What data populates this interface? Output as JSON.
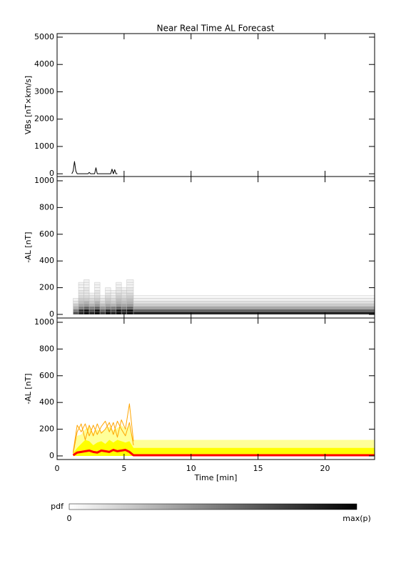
{
  "chart_data": [
    {
      "type": "line",
      "title": "Near Real Time AL Forecast",
      "ylabel": "VBs [nT×km/s]",
      "xlim": [
        0,
        23.7
      ],
      "xticks": [
        0,
        5,
        10,
        15,
        20
      ],
      "ylim": [
        -100,
        5130
      ],
      "yticks": [
        0,
        1000,
        2000,
        3000,
        4000,
        5000
      ],
      "x": [
        1.1,
        1.2,
        1.3,
        1.4,
        1.5,
        2.3,
        2.4,
        2.5,
        2.8,
        2.9,
        3.0,
        4.0,
        4.1,
        4.2,
        4.3,
        4.4,
        4.5
      ],
      "series": [
        {
          "color": "#000000",
          "values": [
            0,
            100,
            450,
            100,
            0,
            0,
            50,
            0,
            0,
            220,
            0,
            0,
            170,
            0,
            150,
            0,
            0
          ]
        }
      ]
    },
    {
      "type": "heatmap",
      "ylabel": "-AL [nT]",
      "xlim": [
        0,
        23.7
      ],
      "xticks": [
        0,
        5,
        10,
        15,
        20
      ],
      "ylim": [
        -27,
        1032
      ],
      "yticks": [
        0,
        200,
        400,
        600,
        800,
        1000
      ],
      "x_edges": [
        1.2,
        1.6,
        2.0,
        2.4,
        2.8,
        3.2,
        3.6,
        4.0,
        4.4,
        4.8,
        5.2,
        5.7,
        23.7
      ],
      "y_edges": [
        0,
        20,
        40,
        60,
        80,
        100,
        120,
        140,
        160,
        180,
        200,
        220,
        240,
        260
      ],
      "z": [
        [
          0.7,
          0.9,
          1,
          0.9,
          1,
          0.8,
          1,
          0.9,
          1,
          0.9,
          1,
          0.9
        ],
        [
          0.5,
          0.8,
          0.9,
          0.7,
          0.9,
          0.6,
          0.8,
          0.7,
          0.9,
          0.8,
          0.9,
          0.6
        ],
        [
          0.3,
          0.5,
          0.6,
          0.5,
          0.6,
          0.4,
          0.5,
          0.5,
          0.6,
          0.5,
          0.6,
          0.35
        ],
        [
          0.2,
          0.35,
          0.4,
          0.3,
          0.4,
          0.25,
          0.35,
          0.3,
          0.4,
          0.35,
          0.4,
          0.2
        ],
        [
          0.1,
          0.25,
          0.3,
          0.2,
          0.3,
          0.15,
          0.25,
          0.2,
          0.3,
          0.25,
          0.3,
          0.12
        ],
        [
          0.05,
          0.2,
          0.2,
          0.15,
          0.2,
          0.1,
          0.2,
          0.15,
          0.25,
          0.2,
          0.25,
          0.06
        ],
        [
          0,
          0.15,
          0.15,
          0.1,
          0.15,
          0.05,
          0.15,
          0.1,
          0.2,
          0.15,
          0.2,
          0.03
        ],
        [
          0,
          0.1,
          0.1,
          0.05,
          0.1,
          0,
          0.1,
          0.05,
          0.15,
          0.1,
          0.15,
          0
        ],
        [
          0,
          0.1,
          0.1,
          0,
          0.1,
          0,
          0.05,
          0.05,
          0.1,
          0.1,
          0.1,
          0
        ],
        [
          0,
          0.05,
          0.1,
          0,
          0.05,
          0,
          0.05,
          0,
          0.1,
          0.05,
          0.1,
          0
        ],
        [
          0,
          0.05,
          0.05,
          0,
          0.05,
          0,
          0,
          0,
          0.05,
          0,
          0.05,
          0
        ],
        [
          0,
          0.05,
          0.05,
          0,
          0.05,
          0,
          0,
          0,
          0.05,
          0,
          0.05,
          0
        ],
        [
          0,
          0,
          0.05,
          0,
          0,
          0,
          0,
          0,
          0,
          0,
          0.05,
          0
        ]
      ]
    },
    {
      "type": "line",
      "ylabel": "-AL [nT]",
      "xlabel": "Time [min]",
      "xtick_labels": true,
      "xlim": [
        0,
        23.7
      ],
      "xticks": [
        0,
        5,
        10,
        15,
        20
      ],
      "ylim": [
        -27,
        1032
      ],
      "yticks": [
        0,
        200,
        400,
        600,
        800,
        1000
      ],
      "x": [
        1.2,
        1.5,
        1.8,
        2.1,
        2.4,
        2.7,
        3.0,
        3.3,
        3.6,
        3.9,
        4.2,
        4.5,
        4.8,
        5.1,
        5.4,
        5.7,
        5.8,
        23.7
      ],
      "series": [
        {
          "color": "#ffff99",
          "fill": true,
          "values": [
            50,
            150,
            160,
            200,
            220,
            170,
            200,
            180,
            200,
            220,
            190,
            210,
            230,
            200,
            230,
            120,
            120,
            120
          ]
        },
        {
          "color": "#ffff00",
          "fill": true,
          "values": [
            20,
            60,
            90,
            120,
            110,
            80,
            100,
            110,
            90,
            120,
            100,
            120,
            110,
            100,
            110,
            60,
            60,
            60
          ]
        },
        {
          "color": "#ffa500",
          "values": [
            30,
            230,
            180,
            240,
            150,
            230,
            160,
            220,
            260,
            180,
            250,
            140,
            270,
            200,
            390,
            110,
            null,
            null
          ]
        },
        {
          "color": "#ffa500",
          "values": [
            20,
            180,
            240,
            120,
            230,
            150,
            240,
            170,
            200,
            250,
            160,
            260,
            200,
            150,
            250,
            80,
            null,
            null
          ]
        },
        {
          "color": "#ff0000",
          "width": 3,
          "values": [
            5,
            25,
            30,
            35,
            40,
            30,
            25,
            40,
            35,
            30,
            45,
            35,
            40,
            45,
            30,
            5,
            5,
            5
          ]
        }
      ]
    }
  ],
  "colorbar": {
    "label": "pdf",
    "min_label": "0",
    "max_label": "max(p)"
  }
}
